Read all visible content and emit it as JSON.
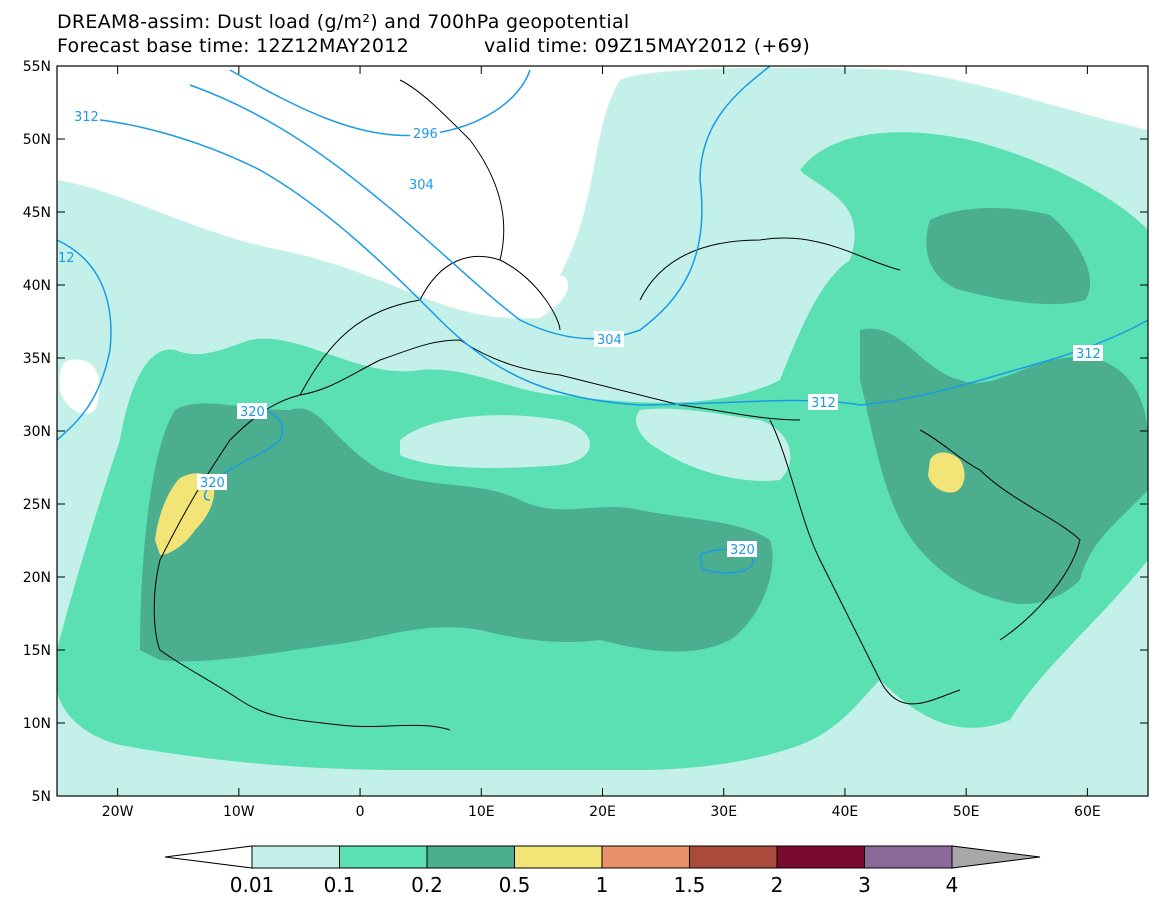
{
  "header": {
    "title": "DREAM8-assim: Dust load (g/m²) and 700hPa geopotential",
    "base_time_label": "Forecast base time: 12Z12MAY2012",
    "valid_time_label": "valid time: 09Z15MAY2012 (+69)"
  },
  "map": {
    "lon_range": [
      -25,
      65
    ],
    "lat_range": [
      5,
      55
    ],
    "lat_ticks": [
      {
        "value": 55,
        "label": "55N"
      },
      {
        "value": 50,
        "label": "50N"
      },
      {
        "value": 45,
        "label": "45N"
      },
      {
        "value": 40,
        "label": "40N"
      },
      {
        "value": 35,
        "label": "35N"
      },
      {
        "value": 30,
        "label": "30N"
      },
      {
        "value": 25,
        "label": "25N"
      },
      {
        "value": 20,
        "label": "20N"
      },
      {
        "value": 15,
        "label": "15N"
      },
      {
        "value": 10,
        "label": "10N"
      },
      {
        "value": 5,
        "label": "5N"
      }
    ],
    "lon_ticks": [
      {
        "value": -20,
        "label": "20W"
      },
      {
        "value": -10,
        "label": "10W"
      },
      {
        "value": 0,
        "label": "0"
      },
      {
        "value": 10,
        "label": "10E"
      },
      {
        "value": 20,
        "label": "20E"
      },
      {
        "value": 30,
        "label": "30E"
      },
      {
        "value": 40,
        "label": "40E"
      },
      {
        "value": 50,
        "label": "50E"
      },
      {
        "value": 60,
        "label": "60E"
      }
    ],
    "contour_color": "#1a9be6",
    "contour_labels": [
      "312",
      "296",
      "304",
      "12",
      "304",
      "320",
      "320",
      "320",
      "312",
      "312"
    ]
  },
  "colorbar": {
    "levels": [
      "0.01",
      "0.1",
      "0.2",
      "0.5",
      "1",
      "1.5",
      "2",
      "3",
      "4"
    ],
    "colors": [
      "#c3f0e8",
      "#5be0b4",
      "#4aae8f",
      "#f2e476",
      "#e8906a",
      "#a94a3c",
      "#7b0b2e",
      "#8e6a9c"
    ],
    "under_color": "#ffffff",
    "over_color": "#a8a8a8"
  }
}
